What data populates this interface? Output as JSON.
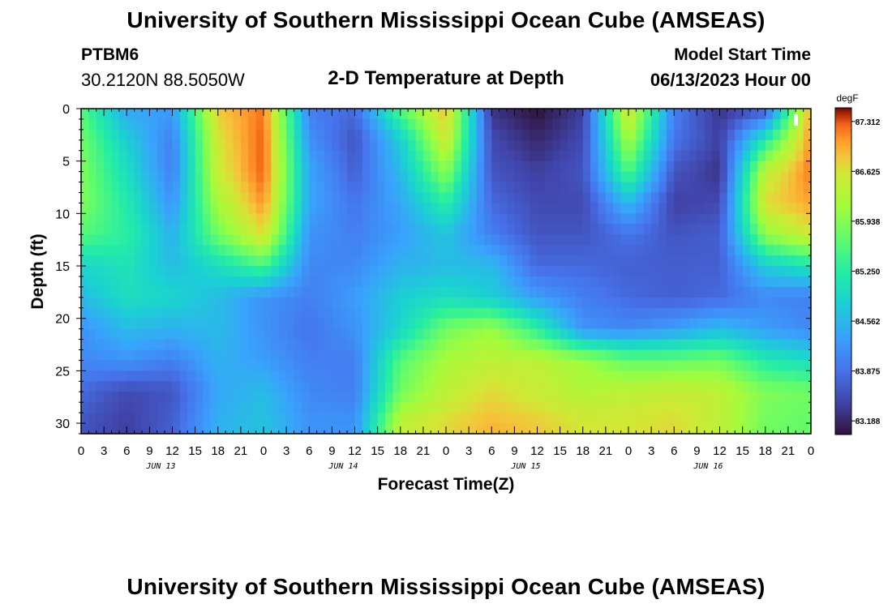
{
  "header": {
    "title": "University of Southern Mississippi Ocean Cube (AMSEAS)",
    "station_id": "PTBM6",
    "station_location": "30.2120N  88.5050W",
    "plot_title": "2-D Temperature at Depth",
    "model_start_label": "Model Start Time",
    "model_start_value": "06/13/2023 Hour 00"
  },
  "footer": {
    "title": "University of Southern Mississippi Ocean Cube (AMSEAS)"
  },
  "chart_data": {
    "type": "heatmap",
    "xlabel": "Forecast Time(Z)",
    "ylabel": "Depth (ft)",
    "colorbar_unit": "degF",
    "colorbar_ticks": [
      "87.312",
      "86.625",
      "85.938",
      "85.250",
      "84.562",
      "83.875",
      "83.188"
    ],
    "color_range": [
      83.0,
      87.5
    ],
    "xlim_hours": [
      0,
      96
    ],
    "ylim_ft": [
      0,
      31
    ],
    "x_tick_labels": [
      "0",
      "3",
      "6",
      "9",
      "12",
      "15",
      "18",
      "21",
      "0",
      "3",
      "6",
      "9",
      "12",
      "15",
      "18",
      "21",
      "0",
      "3",
      "6",
      "9",
      "12",
      "15",
      "18",
      "21",
      "0",
      "3",
      "6",
      "9",
      "12",
      "15",
      "18",
      "21",
      "0"
    ],
    "day_labels": [
      "JUN 13",
      "JUN 14",
      "JUN 15",
      "JUN 16"
    ],
    "y_ticks": [
      0,
      5,
      10,
      15,
      20,
      25,
      30
    ],
    "depth_levels_ft": [
      0,
      3,
      6,
      9,
      12,
      15,
      18,
      21,
      24,
      27,
      30
    ],
    "time_hours": [
      0,
      6,
      12,
      18,
      24,
      30,
      36,
      42,
      48,
      54,
      60,
      66,
      72,
      78,
      84,
      90,
      96
    ],
    "temperature_degF": [
      [
        85.6,
        84.4,
        84.3,
        86.8,
        87.2,
        84.0,
        83.8,
        85.6,
        86.9,
        83.3,
        83.0,
        83.4,
        86.7,
        84.0,
        83.3,
        83.6,
        87.0
      ],
      [
        85.8,
        84.8,
        84.0,
        86.6,
        87.3,
        84.2,
        83.6,
        84.8,
        86.6,
        83.5,
        83.2,
        83.5,
        86.2,
        83.9,
        83.4,
        85.2,
        87.1
      ],
      [
        85.9,
        85.0,
        84.0,
        86.5,
        87.3,
        84.4,
        83.7,
        84.6,
        86.0,
        83.6,
        83.4,
        83.6,
        85.6,
        83.6,
        83.3,
        86.4,
        87.2
      ],
      [
        85.9,
        85.2,
        84.2,
        86.2,
        87.1,
        84.4,
        83.9,
        84.4,
        85.3,
        83.8,
        83.5,
        83.5,
        84.6,
        83.4,
        83.5,
        86.7,
        87.0
      ],
      [
        85.6,
        85.3,
        84.5,
        85.8,
        86.7,
        84.2,
        84.0,
        84.3,
        84.7,
        84.0,
        83.6,
        83.6,
        83.9,
        83.6,
        83.7,
        86.0,
        86.6
      ],
      [
        84.9,
        85.1,
        84.6,
        85.0,
        85.5,
        84.1,
        84.1,
        84.5,
        84.6,
        84.6,
        83.8,
        83.8,
        83.7,
        83.7,
        83.7,
        84.8,
        85.1
      ],
      [
        84.6,
        85.0,
        84.9,
        84.6,
        84.2,
        84.0,
        84.3,
        84.8,
        85.0,
        84.8,
        84.3,
        84.0,
        83.8,
        83.7,
        83.8,
        84.1,
        84.0
      ],
      [
        84.2,
        84.6,
        84.5,
        84.6,
        84.2,
        83.9,
        84.2,
        84.9,
        85.8,
        86.1,
        85.3,
        84.2,
        84.1,
        84.3,
        84.6,
        84.3,
        84.1
      ],
      [
        84.1,
        84.2,
        84.0,
        84.5,
        84.3,
        84.0,
        84.0,
        85.6,
        86.2,
        86.4,
        86.4,
        86.1,
        85.7,
        85.7,
        85.8,
        85.2,
        85.0
      ],
      [
        83.8,
        83.5,
        83.6,
        84.4,
        84.6,
        84.1,
        84.0,
        85.8,
        86.4,
        86.7,
        86.5,
        86.3,
        86.4,
        86.5,
        86.4,
        85.9,
        85.8
      ],
      [
        83.6,
        83.4,
        83.7,
        84.5,
        84.7,
        84.2,
        84.2,
        86.4,
        86.7,
        86.9,
        86.8,
        86.6,
        86.6,
        86.7,
        86.4,
        85.8,
        85.7
      ]
    ]
  }
}
